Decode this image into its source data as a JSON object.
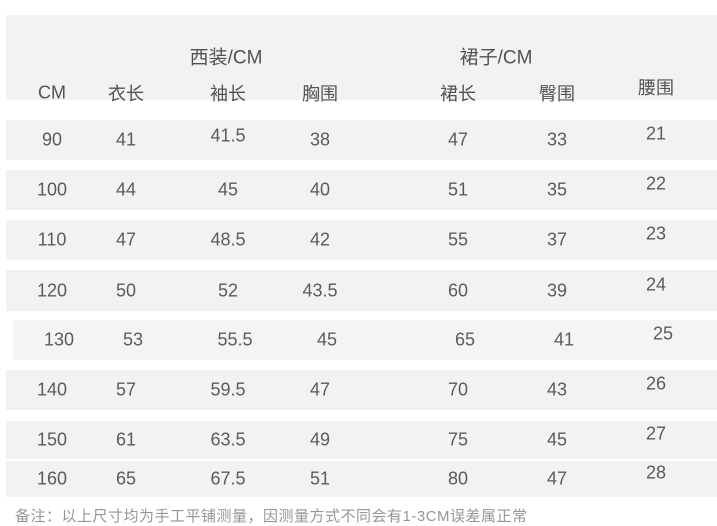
{
  "colors": {
    "background": "#ffffff",
    "band": "#f2f2f3",
    "text": "#5b5b5e",
    "header_text": "#525255"
  },
  "table": {
    "group_headers": {
      "suit": "西装/CM",
      "skirt": "裙子/CM"
    },
    "columns": [
      "CM",
      "衣长",
      "袖长",
      "胸围",
      "裙长",
      "臀围",
      "腰围"
    ],
    "rows": [
      {
        "values": [
          "90",
          "41",
          "41.5",
          "38",
          "47",
          "33",
          "21"
        ]
      },
      {
        "values": [
          "100",
          "44",
          "45",
          "40",
          "51",
          "35",
          "22"
        ]
      },
      {
        "values": [
          "110",
          "47",
          "48.5",
          "42",
          "55",
          "37",
          "23"
        ]
      },
      {
        "values": [
          "120",
          "50",
          "52",
          "43.5",
          "60",
          "39",
          "24"
        ]
      },
      {
        "values": [
          "130",
          "53",
          "55.5",
          "45",
          "65",
          "41",
          "25"
        ]
      },
      {
        "values": [
          "140",
          "57",
          "59.5",
          "47",
          "70",
          "43",
          "26"
        ]
      },
      {
        "values": [
          "150",
          "61",
          "63.5",
          "49",
          "75",
          "45",
          "27"
        ]
      },
      {
        "values": [
          "160",
          "65",
          "67.5",
          "51",
          "80",
          "47",
          "28"
        ]
      }
    ],
    "clipped_note": "备注：以上尺寸均为手工平铺测量，因测量方式不同会有1-3CM误差属正常"
  },
  "chart_data": {
    "type": "table",
    "title": "",
    "group_headers": [
      "西装/CM",
      "裙子/CM"
    ],
    "columns": [
      "CM",
      "衣长",
      "袖长",
      "胸围",
      "裙长",
      "臀围",
      "腰围"
    ],
    "rows": [
      [
        90,
        41,
        41.5,
        38,
        47,
        33,
        21
      ],
      [
        100,
        44,
        45,
        40,
        51,
        35,
        22
      ],
      [
        110,
        47,
        48.5,
        42,
        55,
        37,
        23
      ],
      [
        120,
        50,
        52,
        43.5,
        60,
        39,
        24
      ],
      [
        130,
        53,
        55.5,
        45,
        65,
        41,
        25
      ],
      [
        140,
        57,
        59.5,
        47,
        70,
        43,
        26
      ],
      [
        150,
        61,
        63.5,
        49,
        75,
        45,
        27
      ],
      [
        160,
        65,
        67.5,
        51,
        80,
        47,
        28
      ]
    ]
  }
}
